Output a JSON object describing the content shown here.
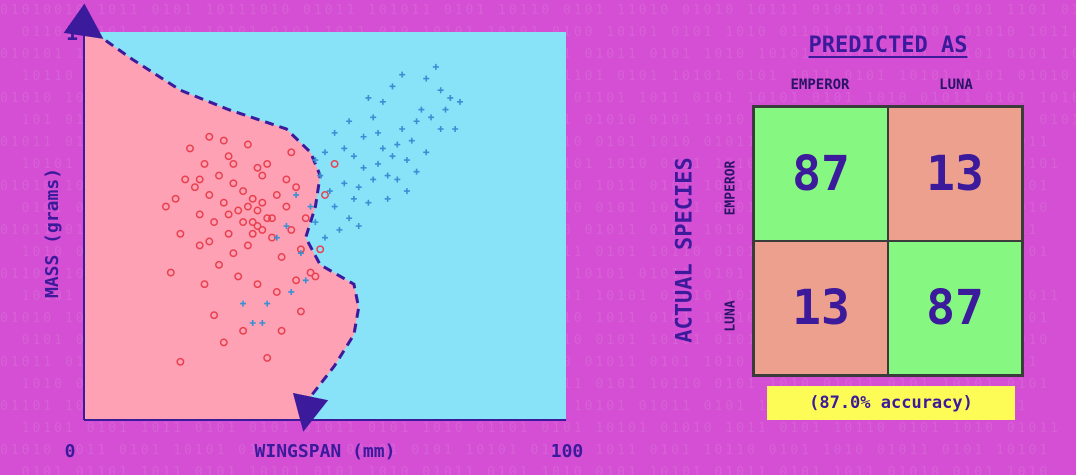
{
  "colors": {
    "background": "#d44fd3",
    "region_emperor": "#fea1b4",
    "region_luna": "#88e3f9",
    "emperor_points": "#e8404e",
    "luna_points": "#3a8fd4",
    "boundary": "#3b1a9c",
    "correct_cell": "#86f780",
    "wrong_cell": "#eda08e",
    "accuracy_bg": "#fdfb55"
  },
  "chart_data": [
    {
      "type": "scatter",
      "xlabel": "WINGSPAN (mm)",
      "ylabel": "MASS (grams)",
      "xlim": [
        0,
        100
      ],
      "ylim": [
        0,
        1
      ],
      "x_ticks": [
        "0",
        "100"
      ],
      "y_ticks": [
        "1"
      ],
      "decision_boundary": [
        [
          2,
          1.0
        ],
        [
          10,
          0.93
        ],
        [
          20,
          0.85
        ],
        [
          30,
          0.8
        ],
        [
          42,
          0.75
        ],
        [
          47,
          0.69
        ],
        [
          49,
          0.63
        ],
        [
          48,
          0.55
        ],
        [
          46,
          0.47
        ],
        [
          49,
          0.4
        ],
        [
          56,
          0.35
        ],
        [
          57,
          0.29
        ],
        [
          56,
          0.22
        ],
        [
          52,
          0.14
        ],
        [
          47,
          0.06
        ],
        [
          46,
          0.0
        ]
      ],
      "series": [
        {
          "points": [
            [
              17,
              0.55
            ],
            [
              19,
              0.57
            ],
            [
              21,
              0.62
            ],
            [
              23,
              0.6
            ],
            [
              24,
              0.53
            ],
            [
              25,
              0.66
            ],
            [
              26,
              0.58
            ],
            [
              27,
              0.51
            ],
            [
              28,
              0.63
            ],
            [
              29,
              0.56
            ],
            [
              30,
              0.48
            ],
            [
              31,
              0.61
            ],
            [
              32,
              0.54
            ],
            [
              33,
              0.59
            ],
            [
              34,
              0.45
            ],
            [
              35,
              0.57
            ],
            [
              36,
              0.5
            ],
            [
              37,
              0.63
            ],
            [
              38,
              0.52
            ],
            [
              39,
              0.47
            ],
            [
              40,
              0.58
            ],
            [
              41,
              0.42
            ],
            [
              42,
              0.55
            ],
            [
              43,
              0.49
            ],
            [
              44,
              0.6
            ],
            [
              45,
              0.44
            ],
            [
              46,
              0.52
            ],
            [
              47,
              0.38
            ],
            [
              22,
              0.7
            ],
            [
              24,
              0.45
            ],
            [
              26,
              0.73
            ],
            [
              28,
              0.4
            ],
            [
              30,
              0.68
            ],
            [
              32,
              0.37
            ],
            [
              34,
              0.71
            ],
            [
              36,
              0.35
            ],
            [
              38,
              0.66
            ],
            [
              40,
              0.33
            ],
            [
              42,
              0.62
            ],
            [
              44,
              0.36
            ],
            [
              20,
              0.48
            ],
            [
              18,
              0.38
            ],
            [
              25,
              0.35
            ],
            [
              27,
              0.27
            ],
            [
              33,
              0.23
            ],
            [
              29,
              0.2
            ],
            [
              38,
              0.16
            ],
            [
              20,
              0.15
            ],
            [
              36,
              0.65
            ],
            [
              31,
              0.43
            ],
            [
              35,
              0.48
            ],
            [
              37,
              0.56
            ],
            [
              39,
              0.52
            ],
            [
              33,
              0.51
            ],
            [
              30,
              0.53
            ],
            [
              34,
              0.55
            ],
            [
              36,
              0.54
            ],
            [
              35,
              0.51
            ],
            [
              37,
              0.49
            ],
            [
              52,
              0.66
            ],
            [
              49,
              0.44
            ],
            [
              45,
              0.28
            ],
            [
              41,
              0.23
            ],
            [
              48,
              0.37
            ],
            [
              50,
              0.58
            ],
            [
              26,
              0.46
            ],
            [
              24,
              0.62
            ],
            [
              29,
              0.72
            ],
            [
              31,
              0.66
            ],
            [
              43,
              0.69
            ]
          ],
          "values": []
        },
        {
          "points": [
            [
              45,
              0.43
            ],
            [
              48,
              0.51
            ],
            [
              50,
              0.47
            ],
            [
              52,
              0.55
            ],
            [
              54,
              0.61
            ],
            [
              56,
              0.57
            ],
            [
              58,
              0.65
            ],
            [
              60,
              0.62
            ],
            [
              62,
              0.7
            ],
            [
              64,
              0.68
            ],
            [
              66,
              0.75
            ],
            [
              68,
              0.72
            ],
            [
              70,
              0.8
            ],
            [
              72,
              0.78
            ],
            [
              74,
              0.85
            ],
            [
              76,
              0.83
            ],
            [
              55,
              0.52
            ],
            [
              57,
              0.6
            ],
            [
              59,
              0.56
            ],
            [
              61,
              0.66
            ],
            [
              63,
              0.63
            ],
            [
              65,
              0.71
            ],
            [
              67,
              0.67
            ],
            [
              69,
              0.77
            ],
            [
              53,
              0.49
            ],
            [
              51,
              0.59
            ],
            [
              49,
              0.63
            ],
            [
              58,
              0.73
            ],
            [
              60,
              0.78
            ],
            [
              62,
              0.82
            ],
            [
              64,
              0.86
            ],
            [
              66,
              0.89
            ],
            [
              71,
              0.88
            ],
            [
              73,
              0.91
            ],
            [
              75,
              0.8
            ],
            [
              77,
              0.75
            ],
            [
              56,
              0.68
            ],
            [
              54,
              0.7
            ],
            [
              47,
              0.55
            ],
            [
              44,
              0.58
            ],
            [
              42,
              0.5
            ],
            [
              40,
              0.47
            ],
            [
              46,
              0.36
            ],
            [
              43,
              0.33
            ],
            [
              38,
              0.3
            ],
            [
              35,
              0.25
            ],
            [
              33,
              0.3
            ],
            [
              37,
              0.25
            ],
            [
              67,
              0.59
            ],
            [
              69,
              0.64
            ],
            [
              52,
              0.74
            ],
            [
              50,
              0.69
            ],
            [
              59,
              0.83
            ],
            [
              61,
              0.74
            ],
            [
              57,
              0.5
            ],
            [
              63,
              0.57
            ],
            [
              65,
              0.62
            ],
            [
              55,
              0.77
            ],
            [
              48,
              0.67
            ],
            [
              71,
              0.69
            ],
            [
              74,
              0.75
            ],
            [
              78,
              0.82
            ]
          ],
          "values": []
        }
      ]
    },
    {
      "type": "table",
      "title": "PREDICTED AS",
      "row_axis_label": "ACTUAL SPECIES",
      "columns": [
        "EMPEROR",
        "LUNA"
      ],
      "rows": [
        "EMPEROR",
        "LUNA"
      ],
      "cells": [
        [
          "87",
          "13"
        ],
        [
          "13",
          "87"
        ]
      ],
      "accuracy_label": "(87.0% accuracy)"
    }
  ]
}
